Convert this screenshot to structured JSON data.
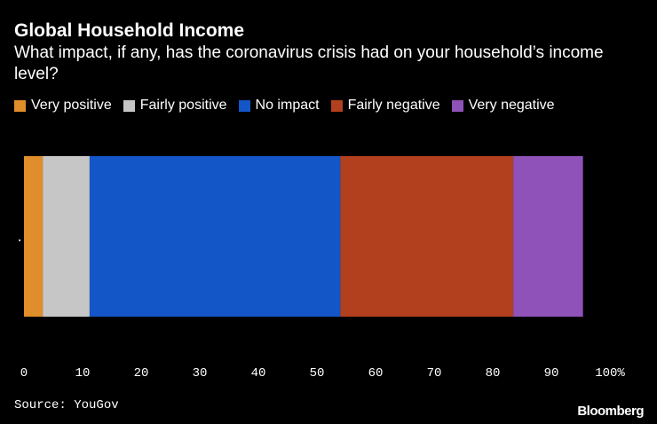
{
  "title": "Global Household Income",
  "subtitle": "What impact, if any, has the coronavirus crisis had on your household’s income level?",
  "source": "Source: YouGov",
  "brand": "Bloomberg",
  "chart_data": {
    "type": "bar",
    "orientation": "horizontal",
    "stacked": true,
    "categories": [
      "."
    ],
    "series": [
      {
        "name": "Very positive",
        "color": "#e08d2b",
        "values": [
          3.2
        ]
      },
      {
        "name": "Fairly positive",
        "color": "#c6c6c6",
        "values": [
          8.0
        ]
      },
      {
        "name": "No impact",
        "color": "#1356c8",
        "values": [
          42.8
        ]
      },
      {
        "name": "Fairly negative",
        "color": "#b2401e",
        "values": [
          29.5
        ]
      },
      {
        "name": "Very negative",
        "color": "#8e52b8",
        "values": [
          11.9
        ]
      }
    ],
    "xlim": [
      0,
      100
    ],
    "xticks": [
      "0",
      "10",
      "20",
      "30",
      "40",
      "50",
      "60",
      "70",
      "80",
      "90",
      "100%"
    ],
    "xticks_values": [
      0,
      10,
      20,
      30,
      40,
      50,
      60,
      70,
      80,
      90,
      100
    ],
    "legend": "top-left",
    "grid": false
  }
}
